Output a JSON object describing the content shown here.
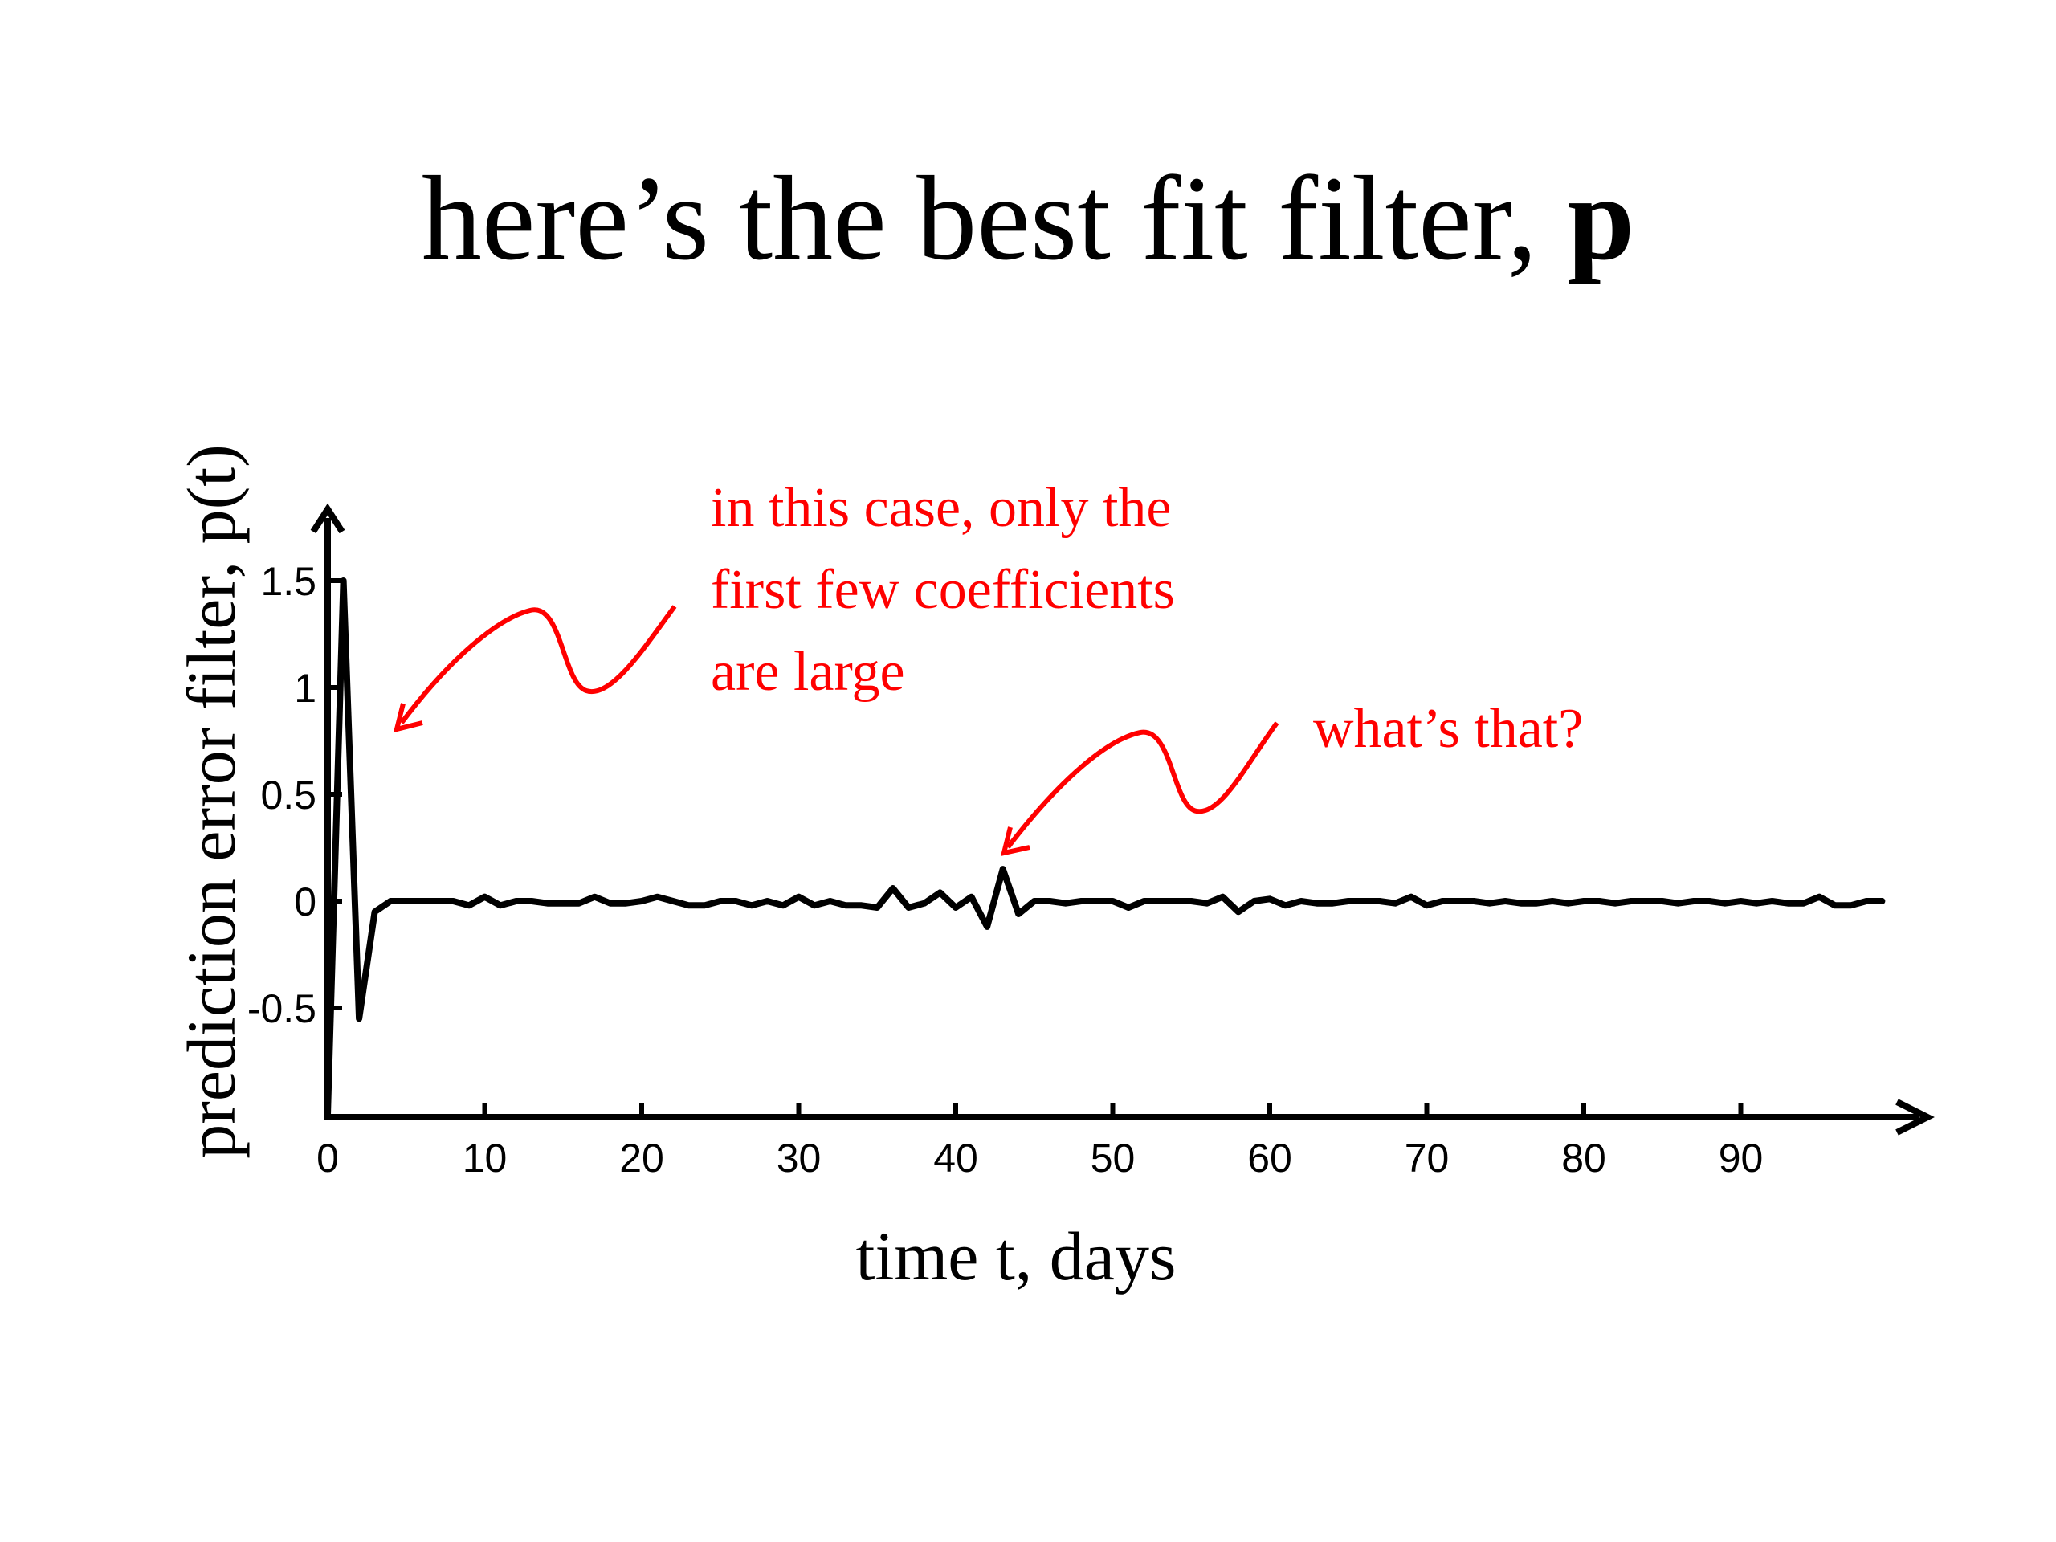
{
  "slide": {
    "title_text": "here’s the best fit filter, ",
    "title_bold": "p"
  },
  "annotations": {
    "note1_lines": [
      "in this case, only the",
      "first few coefficients",
      "are large"
    ],
    "note2": "what’s that?",
    "color": "#ff0000"
  },
  "chart_data": {
    "type": "line",
    "xlabel": "time t, days",
    "ylabel": "prediction error filter, p(t)",
    "xlim": [
      0,
      100
    ],
    "ylim": [
      -1,
      1.8
    ],
    "xticks": [
      0,
      10,
      20,
      30,
      40,
      50,
      60,
      70,
      80,
      90
    ],
    "yticks": [
      -0.5,
      0,
      0.5,
      1,
      1.5
    ],
    "ytick_labels": [
      "-0.5",
      "0",
      "0.5",
      "1",
      "1.5"
    ],
    "line_color": "#000000",
    "series": [
      {
        "x": [
          0,
          1,
          2,
          3,
          4,
          5,
          6,
          7,
          8,
          9,
          10,
          11,
          12,
          13,
          14,
          15,
          16,
          17,
          18,
          19,
          20,
          21,
          22,
          23,
          24,
          25,
          26,
          27,
          28,
          29,
          30,
          31,
          32,
          33,
          34,
          35,
          36,
          37,
          38,
          39,
          40,
          41,
          42,
          43,
          44,
          45,
          46,
          47,
          48,
          49,
          50,
          51,
          52,
          53,
          54,
          55,
          56,
          57,
          58,
          59,
          60,
          61,
          62,
          63,
          64,
          65,
          66,
          67,
          68,
          69,
          70,
          71,
          72,
          73,
          74,
          75,
          76,
          77,
          78,
          79,
          80,
          81,
          82,
          83,
          84,
          85,
          86,
          87,
          88,
          89,
          90,
          91,
          92,
          93,
          94,
          95,
          96,
          97,
          98,
          99
        ],
        "y": [
          -1.0,
          1.5,
          -0.55,
          -0.05,
          0.0,
          0.0,
          0.0,
          0.0,
          0.0,
          -0.02,
          0.02,
          -0.02,
          0.0,
          0.0,
          -0.01,
          -0.01,
          -0.01,
          0.02,
          -0.01,
          -0.01,
          0.0,
          0.02,
          0.0,
          -0.02,
          -0.02,
          0.0,
          0.0,
          -0.02,
          0.0,
          -0.02,
          0.02,
          -0.02,
          0.0,
          -0.02,
          -0.02,
          -0.03,
          0.06,
          -0.03,
          -0.01,
          0.04,
          -0.03,
          0.02,
          -0.12,
          0.15,
          -0.06,
          0.0,
          0.0,
          -0.01,
          0.0,
          0.0,
          0.0,
          -0.03,
          0.0,
          0.0,
          0.0,
          0.0,
          -0.01,
          0.02,
          -0.05,
          0.0,
          0.01,
          -0.02,
          0.0,
          -0.01,
          -0.01,
          0.0,
          0.0,
          0.0,
          -0.01,
          0.02,
          -0.02,
          0.0,
          0.0,
          0.0,
          -0.01,
          0.0,
          -0.01,
          -0.01,
          0.0,
          -0.01,
          0.0,
          0.0,
          -0.01,
          0.0,
          0.0,
          0.0,
          -0.01,
          0.0,
          0.0,
          -0.01,
          0.0,
          -0.01,
          0.0,
          -0.01,
          -0.01,
          0.02,
          -0.02,
          -0.02,
          0.0,
          0.0
        ]
      }
    ]
  }
}
